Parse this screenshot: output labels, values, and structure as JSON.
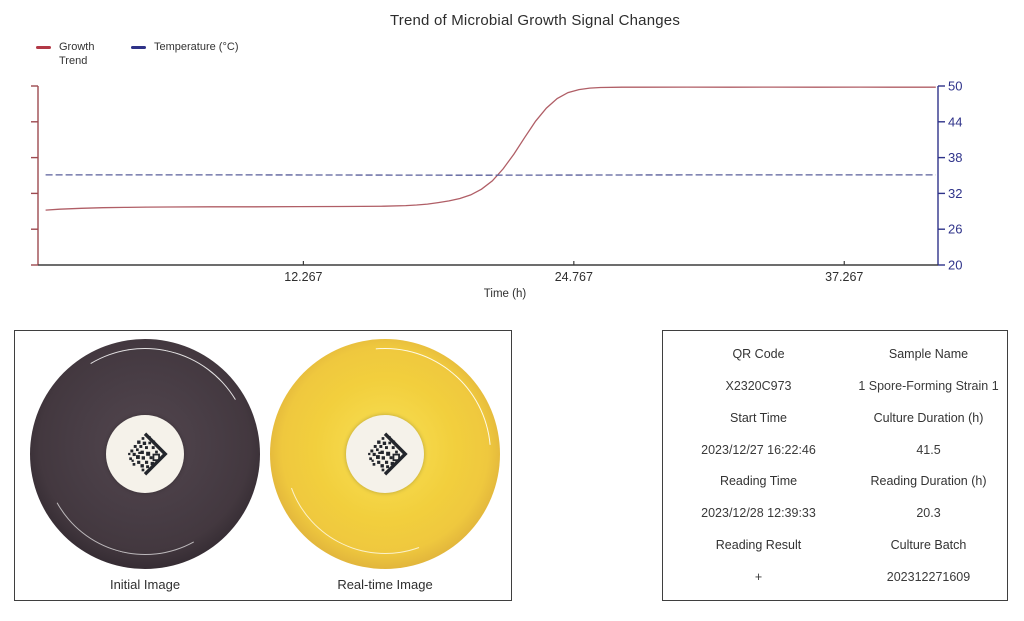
{
  "chart_data": {
    "type": "line",
    "title": "Trend of Microbial Growth Signal Changes",
    "xlabel": "Time (h)",
    "xlim": [
      0,
      41.6
    ],
    "ylim": [
      20,
      50
    ],
    "x_ticks": [
      12.267,
      24.767,
      37.267
    ],
    "y_ticks_right": [
      20,
      26,
      32,
      38,
      44,
      50
    ],
    "grid": false,
    "legend_position": "top-left",
    "legend": [
      {
        "label": "Growth Trend",
        "color": "#b23846"
      },
      {
        "label": "Temperature (°C)",
        "color": "#2e3287"
      }
    ],
    "colors": {
      "axis_left": "#9d4a50",
      "axis_right": "#2f338a",
      "axis_bottom": "#3d3d3d",
      "x_tick_label": "#2f2f2f",
      "y_tick_label": "#2f338a"
    },
    "series": [
      {
        "name": "Growth Trend",
        "color": "#b05e66",
        "dash": "",
        "points": [
          [
            0.35,
            29.2
          ],
          [
            1,
            29.35
          ],
          [
            2,
            29.5
          ],
          [
            3,
            29.6
          ],
          [
            4,
            29.65
          ],
          [
            5,
            29.7
          ],
          [
            6,
            29.72
          ],
          [
            8,
            29.75
          ],
          [
            10,
            29.75
          ],
          [
            12,
            29.78
          ],
          [
            14,
            29.8
          ],
          [
            15,
            29.82
          ],
          [
            16,
            29.85
          ],
          [
            17,
            29.95
          ],
          [
            17.5,
            30.05
          ],
          [
            18,
            30.2
          ],
          [
            18.5,
            30.45
          ],
          [
            19,
            30.75
          ],
          [
            19.5,
            31.15
          ],
          [
            20,
            31.75
          ],
          [
            20.5,
            32.7
          ],
          [
            21,
            34.1
          ],
          [
            21.5,
            36.1
          ],
          [
            22,
            38.6
          ],
          [
            22.5,
            41.4
          ],
          [
            23,
            44.1
          ],
          [
            23.5,
            46.3
          ],
          [
            24,
            47.9
          ],
          [
            24.5,
            48.9
          ],
          [
            25,
            49.4
          ],
          [
            25.5,
            49.65
          ],
          [
            26,
            49.75
          ],
          [
            27,
            49.8
          ],
          [
            28,
            49.8
          ],
          [
            30,
            49.82
          ],
          [
            32,
            49.8
          ],
          [
            34,
            49.82
          ],
          [
            36,
            49.8
          ],
          [
            38,
            49.82
          ],
          [
            40,
            49.8
          ],
          [
            41.5,
            49.8
          ]
        ]
      },
      {
        "name": "Temperature",
        "color": "#5a5f9b",
        "dash": "7,3",
        "points": [
          [
            0.35,
            35.1
          ],
          [
            10,
            35.1
          ],
          [
            20,
            35.05
          ],
          [
            30,
            35.1
          ],
          [
            41.5,
            35.1
          ]
        ]
      }
    ]
  },
  "images_panel": {
    "captions": [
      "Initial Image",
      "Real-time Image"
    ],
    "dish_colors": {
      "initial": "#473c44",
      "initial_center": "#52464e",
      "realtime": "#f2cf3d",
      "realtime_center": "#f8e056"
    }
  },
  "info_table": {
    "rows": [
      {
        "left": "QR Code",
        "right": "Sample Name",
        "kind": "label"
      },
      {
        "left": "X2320C973",
        "right": "1 Spore-Forming Strain 1",
        "kind": "value"
      },
      {
        "left": "Start Time",
        "right": "Culture Duration (h)",
        "kind": "label"
      },
      {
        "left": "2023/12/27 16:22:46",
        "right": "41.5",
        "kind": "value"
      },
      {
        "left": "Reading Time",
        "right": "Reading Duration (h)",
        "kind": "label"
      },
      {
        "left": "2023/12/28 12:39:33",
        "right": "20.3",
        "kind": "value"
      },
      {
        "left": "Reading Result",
        "right": "Culture Batch",
        "kind": "label"
      },
      {
        "left": "+",
        "right": "202312271609",
        "kind": "value"
      }
    ]
  }
}
